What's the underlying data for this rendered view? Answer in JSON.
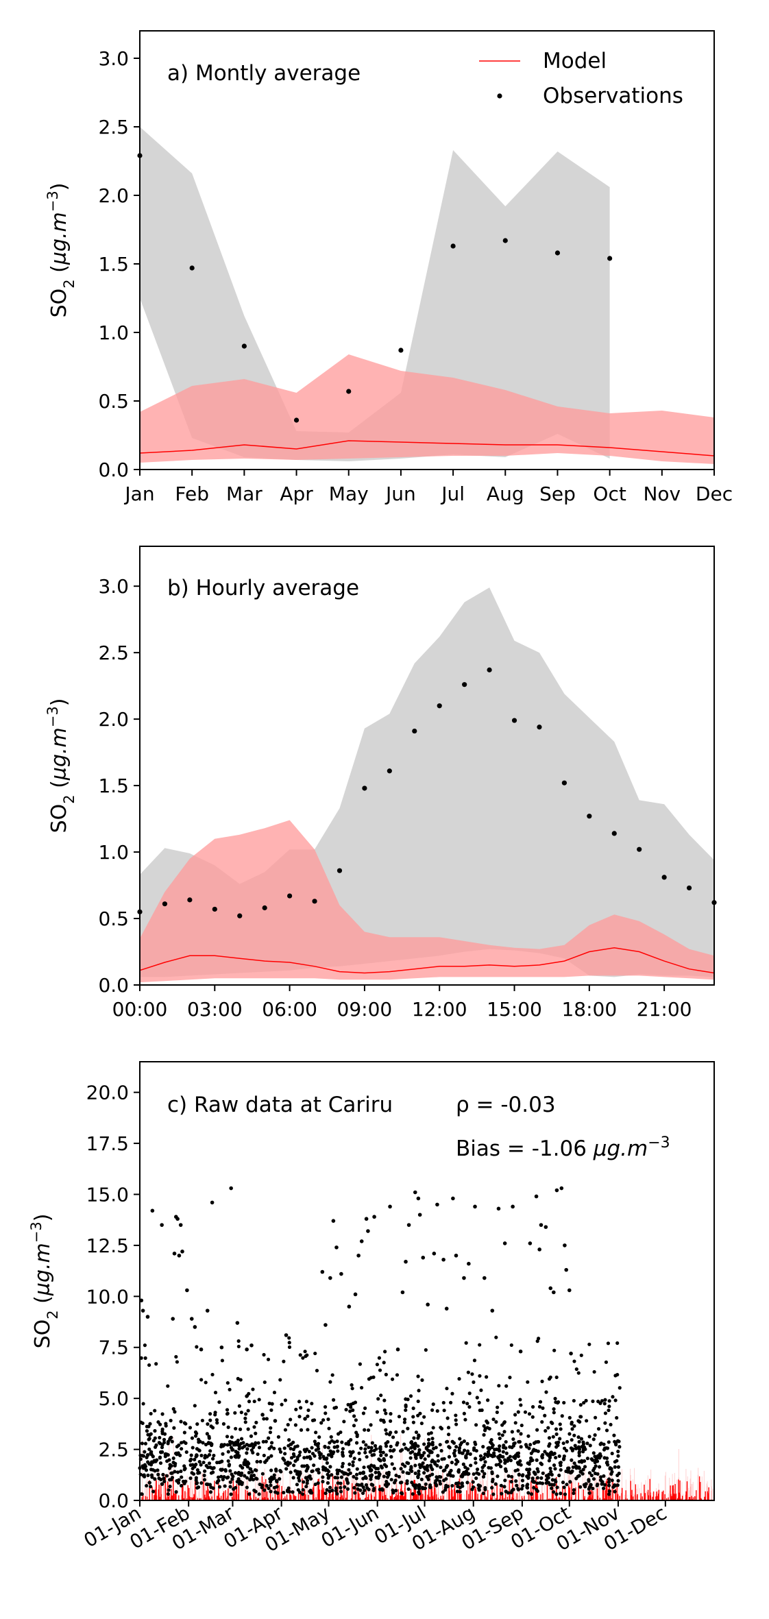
{
  "colors": {
    "model": "#ff0000",
    "model_band": "#ff9999",
    "obs": "#000000",
    "obs_band": "#bfbfbf"
  },
  "legend": {
    "model": "Model",
    "obs": "Observations"
  },
  "chart_data": [
    {
      "type": "line",
      "annotation": "a) Montly average",
      "ylabel": "SO2 (µg.m−3)",
      "ylim": [
        0,
        3.2
      ],
      "yticks": [
        "0.0",
        "0.5",
        "1.0",
        "1.5",
        "2.0",
        "2.5",
        "3.0"
      ],
      "categories": [
        "Jan",
        "Feb",
        "Mar",
        "Apr",
        "May",
        "Jun",
        "Jul",
        "Aug",
        "Sep",
        "Oct",
        "Nov",
        "Dec"
      ],
      "legend_position": "top-right",
      "series": [
        {
          "name": "Model",
          "kind": "line",
          "values": [
            0.12,
            0.14,
            0.18,
            0.15,
            0.21,
            0.2,
            0.19,
            0.18,
            0.18,
            0.16,
            0.13,
            0.1
          ],
          "band_low": [
            0.05,
            0.07,
            0.08,
            0.07,
            0.08,
            0.09,
            0.1,
            0.1,
            0.12,
            0.1,
            0.06,
            0.04
          ],
          "band_high": [
            0.42,
            0.61,
            0.66,
            0.56,
            0.84,
            0.72,
            0.67,
            0.58,
            0.46,
            0.41,
            0.43,
            0.38
          ]
        },
        {
          "name": "Observations",
          "kind": "points",
          "values": [
            2.29,
            1.47,
            0.9,
            0.36,
            0.57,
            0.87,
            1.63,
            1.67,
            1.58,
            1.54,
            null,
            null
          ],
          "band_low": [
            1.25,
            0.23,
            0.09,
            0.07,
            0.06,
            0.08,
            0.11,
            0.09,
            0.26,
            0.08,
            null,
            null
          ],
          "band_high": [
            2.5,
            2.16,
            1.12,
            0.28,
            0.27,
            0.56,
            2.33,
            1.92,
            2.32,
            2.06,
            null,
            null
          ]
        }
      ]
    },
    {
      "type": "line",
      "annotation": "b) Hourly average",
      "ylabel": "SO2 (µg.m−3)",
      "ylim": [
        0,
        3.3
      ],
      "yticks": [
        "0.0",
        "0.5",
        "1.0",
        "1.5",
        "2.0",
        "2.5",
        "3.0"
      ],
      "x": [
        0,
        1,
        2,
        3,
        4,
        5,
        6,
        7,
        8,
        9,
        10,
        11,
        12,
        13,
        14,
        15,
        16,
        17,
        18,
        19,
        20,
        21,
        22,
        23
      ],
      "xlim": [
        0,
        23
      ],
      "xticks": [
        {
          "x": 0,
          "label": "00:00"
        },
        {
          "x": 3,
          "label": "03:00"
        },
        {
          "x": 6,
          "label": "06:00"
        },
        {
          "x": 9,
          "label": "09:00"
        },
        {
          "x": 12,
          "label": "12:00"
        },
        {
          "x": 15,
          "label": "15:00"
        },
        {
          "x": 18,
          "label": "18:00"
        },
        {
          "x": 21,
          "label": "21:00"
        }
      ],
      "series": [
        {
          "name": "Model",
          "kind": "line",
          "values": [
            0.11,
            0.17,
            0.22,
            0.22,
            0.2,
            0.18,
            0.17,
            0.14,
            0.1,
            0.09,
            0.1,
            0.12,
            0.14,
            0.14,
            0.15,
            0.14,
            0.15,
            0.18,
            0.25,
            0.28,
            0.25,
            0.18,
            0.12,
            0.09
          ],
          "band_low": [
            0.02,
            0.03,
            0.04,
            0.05,
            0.05,
            0.05,
            0.05,
            0.05,
            0.04,
            0.04,
            0.04,
            0.05,
            0.06,
            0.06,
            0.06,
            0.06,
            0.06,
            0.06,
            0.07,
            0.07,
            0.07,
            0.06,
            0.05,
            0.04
          ],
          "band_high": [
            0.35,
            0.7,
            0.95,
            1.1,
            1.13,
            1.18,
            1.24,
            1.02,
            0.6,
            0.4,
            0.36,
            0.36,
            0.36,
            0.33,
            0.3,
            0.28,
            0.27,
            0.3,
            0.45,
            0.53,
            0.48,
            0.38,
            0.27,
            0.22
          ]
        },
        {
          "name": "Observations",
          "kind": "points",
          "values": [
            0.55,
            0.61,
            0.64,
            0.57,
            0.52,
            0.58,
            0.67,
            0.63,
            0.86,
            1.48,
            1.61,
            1.91,
            2.1,
            2.26,
            2.37,
            1.99,
            1.94,
            1.52,
            1.27,
            1.14,
            1.02,
            0.81,
            0.73,
            0.62
          ],
          "band_low": [
            0.06,
            0.06,
            0.07,
            0.08,
            0.09,
            0.1,
            0.11,
            0.13,
            0.14,
            0.16,
            0.18,
            0.2,
            0.22,
            0.25,
            0.27,
            0.26,
            0.24,
            0.2,
            0.07,
            0.06,
            0.08,
            0.07,
            0.07,
            0.06
          ],
          "band_high": [
            0.83,
            1.03,
            0.99,
            0.9,
            0.76,
            0.85,
            1.02,
            1.02,
            1.33,
            1.93,
            2.04,
            2.42,
            2.62,
            2.88,
            2.99,
            2.59,
            2.5,
            2.19,
            2.01,
            1.83,
            1.39,
            1.36,
            1.13,
            0.94
          ]
        }
      ]
    },
    {
      "type": "scatter",
      "annotation": "c) Raw data at Cariru",
      "stat_rho": "ρ = -0.03",
      "stat_bias": "Bias = -1.06 µg.m−3",
      "ylabel": "SO2 (µg.m−3)",
      "ylim": [
        0,
        21.5
      ],
      "yticks": [
        "0.0",
        "2.5",
        "5.0",
        "7.5",
        "10.0",
        "12.5",
        "15.0",
        "17.5",
        "20.0"
      ],
      "xlim": [
        0,
        365
      ],
      "xticks": [
        {
          "x": 0,
          "label": "01-Jan"
        },
        {
          "x": 31,
          "label": "01-Feb"
        },
        {
          "x": 59,
          "label": "01-Mar"
        },
        {
          "x": 90,
          "label": "01-Apr"
        },
        {
          "x": 120,
          "label": "01-May"
        },
        {
          "x": 151,
          "label": "01-Jun"
        },
        {
          "x": 181,
          "label": "01-Jul"
        },
        {
          "x": 212,
          "label": "01-Aug"
        },
        {
          "x": 243,
          "label": "01-Sep"
        },
        {
          "x": 273,
          "label": "01-Oct"
        },
        {
          "x": 304,
          "label": "01-Nov"
        },
        {
          "x": 334,
          "label": "01-Dec"
        }
      ],
      "obs_end_day": 305,
      "series": [
        {
          "name": "Observations",
          "kind": "points",
          "highlights": [
            [
              1,
              9.8
            ],
            [
              2,
              9.3
            ],
            [
              5,
              9.0
            ],
            [
              8,
              14.2
            ],
            [
              14,
              13.5
            ],
            [
              21,
              8.9
            ],
            [
              22,
              12.1
            ],
            [
              23,
              13.9
            ],
            [
              24,
              13.8
            ],
            [
              25,
              12.0
            ],
            [
              26,
              13.5
            ],
            [
              27,
              12.2
            ],
            [
              30,
              10.3
            ],
            [
              33,
              8.9
            ],
            [
              35,
              8.5
            ],
            [
              39,
              7.4
            ],
            [
              43,
              9.3
            ],
            [
              46,
              14.6
            ],
            [
              52,
              7.5
            ],
            [
              58,
              15.3
            ],
            [
              62,
              8.7
            ],
            [
              68,
              7.4
            ],
            [
              71,
              7.6
            ],
            [
              78,
              4.2
            ],
            [
              86,
              3.9
            ],
            [
              93,
              8.1
            ],
            [
              105,
              4.0
            ],
            [
              116,
              11.2
            ],
            [
              118,
              8.6
            ],
            [
              121,
              10.9
            ],
            [
              123,
              13.7
            ],
            [
              125,
              12.4
            ],
            [
              128,
              11.1
            ],
            [
              133,
              9.5
            ],
            [
              137,
              10.1
            ],
            [
              139,
              12.0
            ],
            [
              141,
              12.7
            ],
            [
              144,
              13.8
            ],
            [
              145,
              13.2
            ],
            [
              149,
              13.9
            ],
            [
              159,
              14.4
            ],
            [
              164,
              7.4
            ],
            [
              167,
              10.2
            ],
            [
              169,
              11.7
            ],
            [
              171,
              13.5
            ],
            [
              175,
              15.1
            ],
            [
              177,
              14.8
            ],
            [
              178,
              14.0
            ],
            [
              180,
              11.9
            ],
            [
              183,
              9.6
            ],
            [
              187,
              12.1
            ],
            [
              189,
              14.5
            ],
            [
              193,
              11.8
            ],
            [
              195,
              9.4
            ],
            [
              199,
              14.8
            ],
            [
              201,
              12.0
            ],
            [
              206,
              10.9
            ],
            [
              209,
              11.6
            ],
            [
              213,
              14.4
            ],
            [
              219,
              10.9
            ],
            [
              224,
              9.3
            ],
            [
              228,
              14.3
            ],
            [
              232,
              12.6
            ],
            [
              237,
              14.4
            ],
            [
              242,
              7.3
            ],
            [
              248,
              12.6
            ],
            [
              252,
              14.9
            ],
            [
              254,
              12.3
            ],
            [
              255,
              13.5
            ],
            [
              258,
              13.4
            ],
            [
              261,
              10.4
            ],
            [
              263,
              10.2
            ],
            [
              265,
              15.2
            ],
            [
              268,
              15.3
            ],
            [
              270,
              12.5
            ],
            [
              271,
              11.3
            ],
            [
              273,
              10.3
            ],
            [
              274,
              7.2
            ]
          ]
        },
        {
          "name": "Model",
          "kind": "spikes",
          "typical_max": 1.0,
          "peak_max": 3.3
        }
      ]
    }
  ]
}
